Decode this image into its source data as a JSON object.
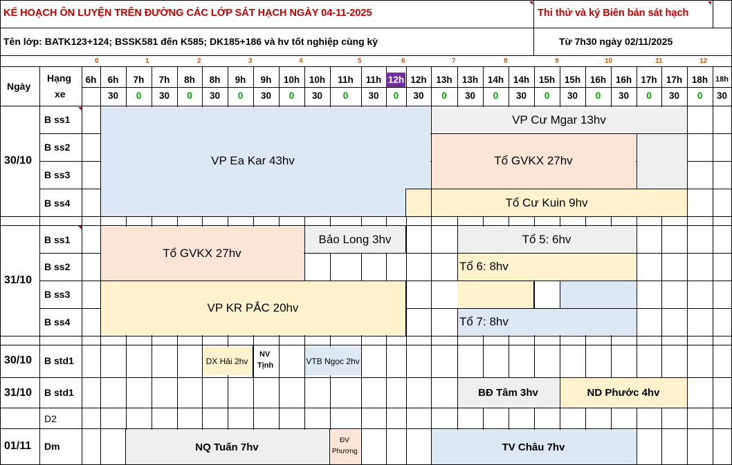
{
  "header": {
    "title": "KẾ HOẠCH ÔN LUYỆN TRÊN ĐƯỜNG CÁC LỚP SÁT HẠCH NGÀY 04-11-2025",
    "right_title": "Thi thử và ký Biên bản sát hạch",
    "classes": "Tên lớp: BATK123+124; BSSK581 đến K585; DK185+186 và hv tốt nghiệp cùng kỳ",
    "start": "Từ 7h30 ngày 02/11/2025"
  },
  "columns": {
    "day_label": "Ngày",
    "class_label_1": "Hạng",
    "class_label_2": "xe",
    "index_row": [
      "0",
      "1",
      "2",
      "3",
      "4",
      "5",
      "6",
      "7",
      "8",
      "9",
      "10",
      "11",
      "12"
    ],
    "hours": [
      "6h",
      "6h",
      "7h",
      "7h",
      "8h",
      "8h",
      "9h",
      "9h",
      "10h",
      "10h",
      "11h",
      "11h",
      "12h",
      "12h",
      "13h",
      "13h",
      "14h",
      "14h",
      "15h",
      "15h",
      "16h",
      "16h",
      "17h",
      "17h",
      "18h",
      "18h"
    ],
    "minutes": [
      "",
      "30",
      "0",
      "30",
      "0",
      "30",
      "0",
      "30",
      "0",
      "30",
      "0",
      "30",
      "0",
      "30",
      "0",
      "30",
      "0",
      "30",
      "0",
      "30",
      "0",
      "30",
      "0",
      "30",
      "0",
      "30"
    ],
    "highlight_color": "#7030a0"
  },
  "days": {
    "d1": "30/10",
    "d2": "31/10",
    "d3": "30/10",
    "d4": "31/10",
    "d5": "01/11"
  },
  "rows": {
    "r1": "B ss1",
    "r2": "B ss2",
    "r3": "B ss3",
    "r4": "B ss4",
    "r5": "B ss1",
    "r6": "B ss2",
    "r7": "B ss3",
    "r8": "B ss4",
    "r9": "B std1",
    "r10": "B std1",
    "r11": "D2",
    "r12": "Dm"
  },
  "blocks": {
    "ea_kar": "VP Ea Kar 43hv",
    "cu_mgar": "VP Cư Mgar 13hv",
    "gvkx_a": "Tổ GVKX 27hv",
    "cu_kuin": "Tổ Cư Kuin 9hv",
    "gvkx_b": "Tổ GVKX 27hv",
    "bao_long": "Bảo Long 3hv",
    "to5": "Tổ 5: 6hv",
    "to6": "Tổ 6: 8hv",
    "kr_pac": "VP KR PẮC 20hv",
    "to7": "Tổ 7: 8hv",
    "dx_hai": "DX Hải 2hv",
    "nv_tinh_1": "NV",
    "nv_tinh_2": "Tịnh",
    "vtb_ngoc": "VTB Ngọc 2hv",
    "bd_tam": "BĐ Tâm 3hv",
    "nd_phuoc": "ND Phước 4hv",
    "nq_tuan": "NQ Tuấn 7hv",
    "dv_phuong_1": "ĐV",
    "dv_phuong_2": "Phương",
    "tv_chau": "TV Châu 7hv"
  },
  "colors": {
    "title_red": "#c00000",
    "blue": "#dce9f5",
    "gray": "#efefef",
    "peach": "#fce4d6",
    "yellow": "#fff2cc",
    "green_text": "#00a000"
  }
}
